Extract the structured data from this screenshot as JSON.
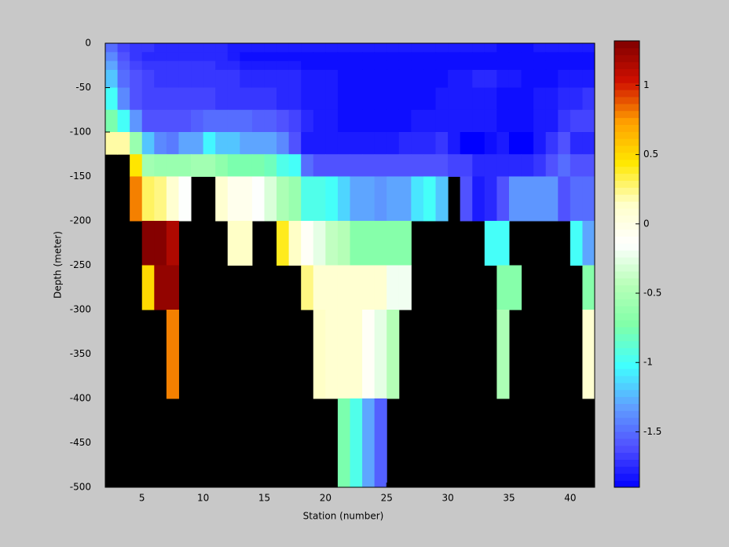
{
  "chart_data": {
    "type": "heatmap",
    "xlabel": "Station (number)",
    "ylabel": "Depth (meter)",
    "x": [
      2,
      3,
      4,
      5,
      6,
      7,
      8,
      9,
      10,
      11,
      12,
      13,
      14,
      15,
      16,
      17,
      18,
      19,
      20,
      21,
      22,
      23,
      24,
      25,
      26,
      27,
      28,
      29,
      30,
      31,
      32,
      33,
      34,
      35,
      36,
      37,
      38,
      39,
      40,
      41,
      42
    ],
    "y": [
      0,
      -10,
      -20,
      -30,
      -50,
      -75,
      -100,
      -125,
      -150,
      -200,
      -250,
      -300,
      -400,
      -500
    ],
    "xlim": [
      2,
      42
    ],
    "ylim": [
      -500,
      0
    ],
    "xticks": [
      5,
      10,
      15,
      20,
      25,
      30,
      35,
      40
    ],
    "yticks": [
      0,
      -50,
      -100,
      -150,
      -200,
      -250,
      -300,
      -350,
      -400,
      -450,
      -500
    ],
    "clim": [
      -1.9,
      1.32
    ],
    "cticks": [
      -1.5,
      -1,
      -0.5,
      0,
      0.5,
      1
    ],
    "colormap": [
      "#0000ff",
      "#5050ff",
      "#60a0ff",
      "#40ffff",
      "#80ffa8",
      "#b8ffb8",
      "#ffffff",
      "#ffffc8",
      "#ffe800",
      "#ffa000",
      "#d01000",
      "#800000"
    ],
    "missing_color": "#000000",
    "z": [
      [
        -1.5,
        -1.65,
        -1.7,
        -1.7,
        -1.75,
        -1.75,
        -1.75,
        -1.75,
        -1.75,
        -1.75,
        -1.8,
        -1.8,
        -1.8,
        -1.8,
        -1.8,
        -1.8,
        -1.8,
        -1.8,
        -1.8,
        -1.8,
        -1.8,
        -1.8,
        -1.8,
        -1.8,
        -1.8,
        -1.8,
        -1.8,
        -1.8,
        -1.8,
        -1.8,
        -1.8,
        -1.8,
        -1.85,
        -1.85,
        -1.85,
        -1.8,
        -1.8,
        -1.8,
        -1.8,
        -1.8
      ],
      [
        -1.4,
        -1.6,
        -1.7,
        -1.75,
        -1.75,
        -1.75,
        -1.75,
        -1.75,
        -1.75,
        -1.75,
        -1.8,
        -1.85,
        -1.85,
        -1.85,
        -1.85,
        -1.85,
        -1.85,
        -1.85,
        -1.85,
        -1.85,
        -1.85,
        -1.85,
        -1.85,
        -1.85,
        -1.85,
        -1.85,
        -1.85,
        -1.85,
        -1.85,
        -1.85,
        -1.85,
        -1.85,
        -1.85,
        -1.85,
        -1.85,
        -1.85,
        -1.85,
        -1.85,
        -1.85,
        -1.85
      ],
      [
        -1.3,
        -1.55,
        -1.65,
        -1.7,
        -1.7,
        -1.7,
        -1.7,
        -1.7,
        -1.7,
        -1.75,
        -1.75,
        -1.8,
        -1.8,
        -1.8,
        -1.8,
        -1.8,
        -1.85,
        -1.85,
        -1.85,
        -1.85,
        -1.85,
        -1.85,
        -1.85,
        -1.85,
        -1.85,
        -1.85,
        -1.85,
        -1.85,
        -1.85,
        -1.85,
        -1.85,
        -1.85,
        -1.85,
        -1.85,
        -1.85,
        -1.85,
        -1.85,
        -1.85,
        -1.85,
        -1.85
      ],
      [
        -1.2,
        -1.5,
        -1.6,
        -1.65,
        -1.7,
        -1.7,
        -1.7,
        -1.7,
        -1.7,
        -1.7,
        -1.7,
        -1.75,
        -1.75,
        -1.75,
        -1.75,
        -1.75,
        -1.8,
        -1.8,
        -1.8,
        -1.85,
        -1.85,
        -1.85,
        -1.85,
        -1.85,
        -1.85,
        -1.85,
        -1.85,
        -1.85,
        -1.8,
        -1.8,
        -1.75,
        -1.75,
        -1.8,
        -1.8,
        -1.85,
        -1.85,
        -1.85,
        -1.8,
        -1.8,
        -1.8
      ],
      [
        -1.0,
        -1.4,
        -1.6,
        -1.65,
        -1.65,
        -1.65,
        -1.65,
        -1.65,
        -1.65,
        -1.7,
        -1.7,
        -1.7,
        -1.7,
        -1.7,
        -1.75,
        -1.75,
        -1.8,
        -1.8,
        -1.8,
        -1.85,
        -1.85,
        -1.85,
        -1.85,
        -1.85,
        -1.85,
        -1.85,
        -1.85,
        -1.8,
        -1.8,
        -1.8,
        -1.8,
        -1.8,
        -1.85,
        -1.85,
        -1.85,
        -1.8,
        -1.8,
        -1.75,
        -1.75,
        -1.7
      ],
      [
        -0.75,
        -1.0,
        -1.35,
        -1.6,
        -1.6,
        -1.6,
        -1.6,
        -1.55,
        -1.5,
        -1.5,
        -1.5,
        -1.5,
        -1.55,
        -1.55,
        -1.6,
        -1.65,
        -1.75,
        -1.8,
        -1.8,
        -1.85,
        -1.85,
        -1.85,
        -1.85,
        -1.85,
        -1.85,
        -1.8,
        -1.8,
        -1.8,
        -1.8,
        -1.8,
        -1.8,
        -1.8,
        -1.85,
        -1.85,
        -1.85,
        -1.8,
        -1.8,
        -1.7,
        -1.65,
        -1.65
      ],
      [
        0.2,
        0.2,
        -0.6,
        -1.2,
        -1.4,
        -1.45,
        -1.3,
        -1.3,
        -1.05,
        -1.2,
        -1.2,
        -1.3,
        -1.3,
        -1.3,
        -1.4,
        -1.6,
        -1.8,
        -1.8,
        -1.8,
        -1.8,
        -1.8,
        -1.8,
        -1.8,
        -1.8,
        -1.75,
        -1.75,
        -1.75,
        -1.7,
        -1.8,
        -1.9,
        -1.9,
        -1.85,
        -1.8,
        -1.9,
        -1.9,
        -1.8,
        -1.7,
        -1.6,
        -1.75,
        -1.75
      ],
      [
        null,
        null,
        0.45,
        -0.55,
        -0.6,
        -0.6,
        -0.6,
        -0.55,
        -0.55,
        -0.65,
        -0.75,
        -0.75,
        -0.75,
        -0.8,
        -0.95,
        -1.0,
        -1.5,
        -1.6,
        -1.6,
        -1.6,
        -1.6,
        -1.6,
        -1.6,
        -1.6,
        -1.6,
        -1.6,
        -1.6,
        -1.6,
        -1.65,
        -1.65,
        -1.75,
        -1.75,
        -1.75,
        -1.75,
        -1.75,
        -1.7,
        -1.6,
        -1.5,
        -1.6,
        -1.6
      ],
      [
        null,
        null,
        0.8,
        0.3,
        0.25,
        0.1,
        -0.15,
        null,
        null,
        0.1,
        -0.05,
        -0.05,
        -0.15,
        -0.3,
        -0.5,
        -0.6,
        -0.95,
        -0.95,
        -1.0,
        -1.15,
        -1.3,
        -1.3,
        -1.35,
        -1.3,
        -1.3,
        -1.1,
        -1.0,
        -1.2,
        null,
        -1.6,
        -1.8,
        -1.75,
        -1.6,
        -1.35,
        -1.35,
        -1.35,
        -1.35,
        -1.6,
        -1.5,
        -1.5
      ],
      [
        null,
        null,
        null,
        1.3,
        1.3,
        1.15,
        null,
        null,
        null,
        null,
        0.15,
        0.15,
        null,
        null,
        0.4,
        0.15,
        -0.1,
        -0.25,
        -0.4,
        -0.45,
        -0.7,
        -0.7,
        -0.7,
        -0.7,
        -0.7,
        null,
        null,
        null,
        null,
        null,
        null,
        -1.0,
        -1.0,
        null,
        null,
        null,
        null,
        null,
        -1.0,
        -1.3
      ],
      [
        null,
        null,
        null,
        0.5,
        1.25,
        1.25,
        null,
        null,
        null,
        null,
        null,
        null,
        null,
        null,
        null,
        null,
        0.25,
        0.1,
        0.1,
        0.1,
        0.1,
        0.1,
        0.1,
        -0.2,
        -0.2,
        null,
        null,
        null,
        null,
        null,
        null,
        null,
        -0.7,
        -0.7,
        null,
        null,
        null,
        null,
        null,
        -0.7
      ],
      [
        null,
        null,
        null,
        null,
        null,
        0.8,
        null,
        null,
        null,
        null,
        null,
        null,
        null,
        null,
        null,
        null,
        null,
        0.15,
        0.1,
        0.1,
        0.1,
        -0.1,
        -0.25,
        -0.45,
        null,
        null,
        null,
        null,
        null,
        null,
        null,
        null,
        -0.5,
        null,
        null,
        null,
        null,
        null,
        null,
        0.1
      ],
      [
        null,
        null,
        null,
        null,
        null,
        null,
        null,
        null,
        null,
        null,
        null,
        null,
        null,
        null,
        null,
        null,
        null,
        null,
        null,
        -0.75,
        -0.95,
        -1.3,
        -1.55,
        null,
        null,
        null,
        null,
        null,
        null,
        null,
        null,
        null,
        null,
        null,
        null,
        null,
        null,
        null,
        null,
        null
      ]
    ]
  }
}
